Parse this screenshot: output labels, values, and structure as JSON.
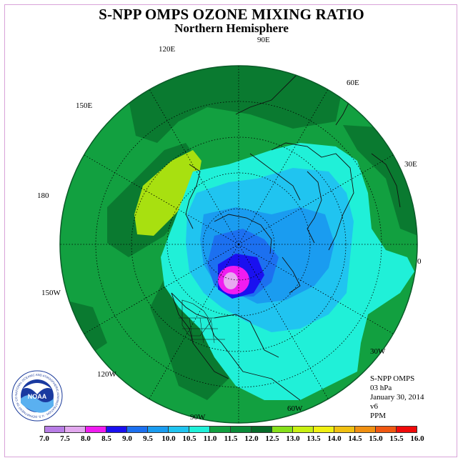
{
  "title": "S-NPP OMPS OZONE MIXING RATIO",
  "subtitle": "Northern Hemisphere",
  "longitude_labels": [
    "90E",
    "60E",
    "30E",
    "0",
    "30W",
    "60W",
    "90W",
    "120W",
    "150W",
    "180",
    "150E",
    "120E"
  ],
  "info": {
    "instrument": "S-NPP OMPS",
    "level": "03 hPa",
    "date": "January 30, 2014",
    "version": "v6",
    "units": "PPM"
  },
  "logo": {
    "text": "NOAA",
    "ring_text": "NATIONAL OCEANIC AND ATMOSPHERIC ADMINISTRATION · U.S. DEPARTMENT OF COMMERCE"
  },
  "colorbar": {
    "ticks": [
      "7.0",
      "7.5",
      "8.0",
      "8.5",
      "9.0",
      "9.5",
      "10.0",
      "10.5",
      "11.0",
      "11.5",
      "12.0",
      "12.5",
      "13.0",
      "13.5",
      "14.0",
      "14.5",
      "15.0",
      "15.5",
      "16.0"
    ],
    "colors": [
      "#b87de6",
      "#e2a8ee",
      "#f01cf0",
      "#1a10f0",
      "#1c70f0",
      "#1a9cf0",
      "#20c4f0",
      "#20f0d8",
      "#12a040",
      "#0a8a38",
      "#056a28",
      "#86e01a",
      "#c8f012",
      "#f0f012",
      "#f0c012",
      "#f09012",
      "#f05812",
      "#f00a0a",
      "#8a5a3a"
    ]
  },
  "map_colors": {
    "background": "#12a040",
    "dark_green": "#0a7a30",
    "cyan": "#20f0d8",
    "light_blue": "#20c4f0",
    "medium_blue": "#1a9cf0",
    "blue": "#1c70f0",
    "deep_blue": "#1a10f0",
    "magenta": "#f01cf0",
    "pink": "#e8a8f0",
    "yellow_green": "#a8e010"
  }
}
